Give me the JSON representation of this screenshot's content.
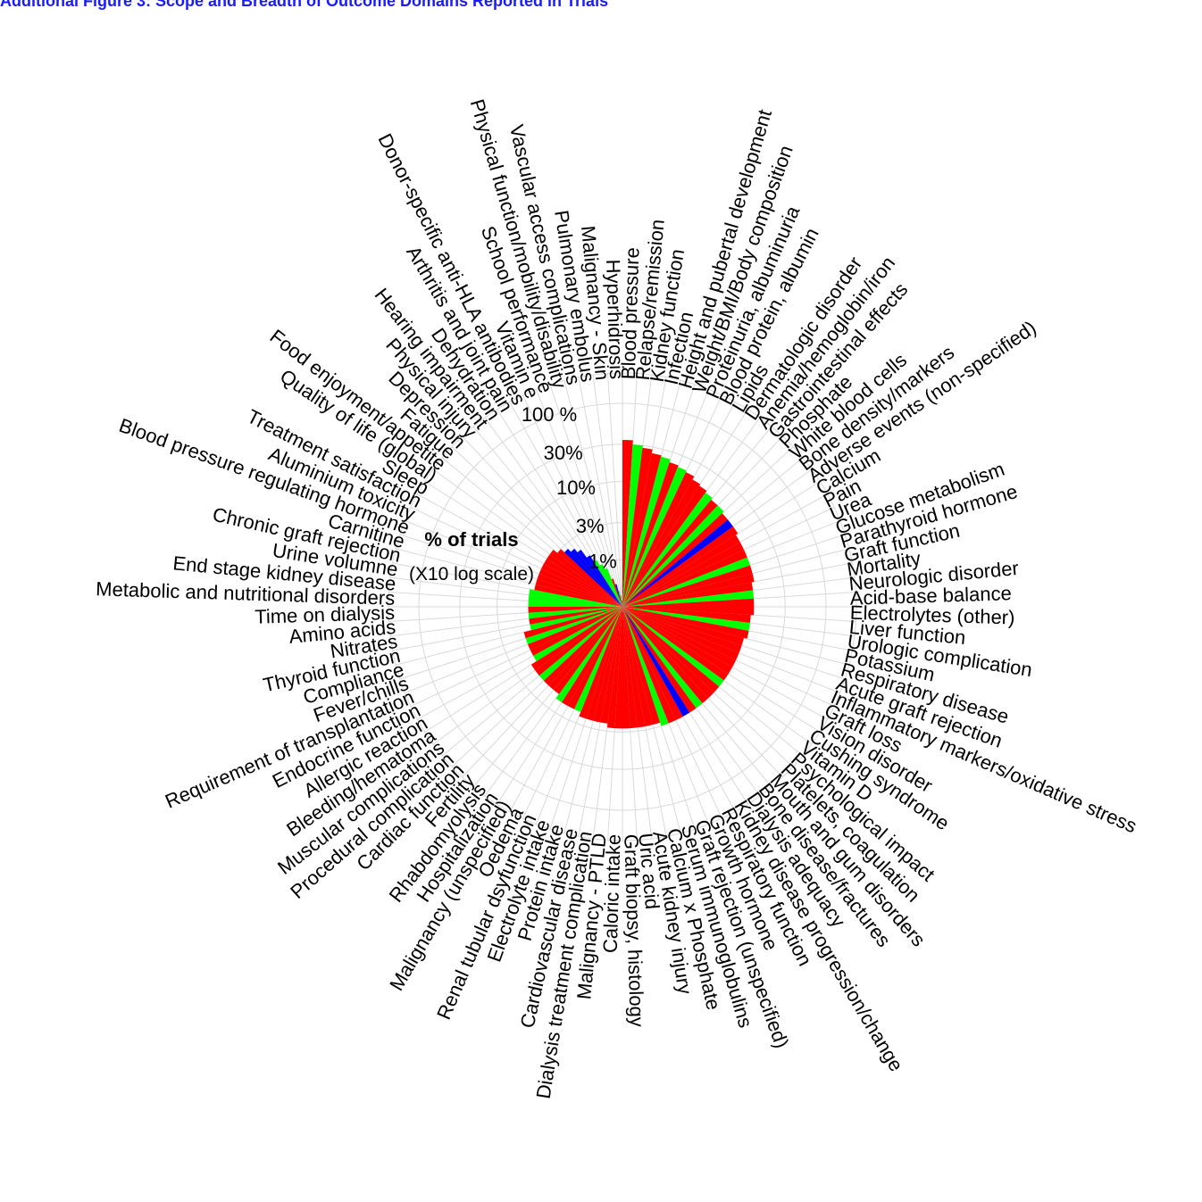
{
  "figure": {
    "title": "Additional Figure 3: Scope and Breadth of Outcome Domains Reported in Trials"
  },
  "chart_data": {
    "type": "radial_bar",
    "ring_labels": [
      "1%",
      "3%",
      "10%",
      "30%",
      "100 %"
    ],
    "rings": [
      1,
      3,
      10,
      30,
      100
    ],
    "ylabel": "% of trials",
    "ylabel_sub": "(X10 log scale)",
    "colors": {
      "red": "#ff0000",
      "green": "#00ff00",
      "blue": "#0000ff",
      "grid": "#d9d9d9"
    },
    "categories": [
      "Blood pressure",
      "Relapse/remission",
      "Kidney function",
      "Infection",
      "Height and pubertal development",
      "Weight/BMI/Body composition",
      "Proteinuria, albuminuria",
      "Blood protein, albumin",
      "Lipids",
      "Dermatologic disorder",
      "Anemia/hemoglobin/iron",
      "Gastrointestinal effects",
      "Phosphate",
      "White blood cells",
      "Bone density/markers",
      "Adverse events (non-specified)",
      "Calcium",
      "Pain",
      "Urea",
      "Glucose metabolism",
      "Parathyroid hormone",
      "Graft function",
      "Mortality",
      "Neurologic disorder",
      "Acid-base balance",
      "Electrolytes (other)",
      "Liver function",
      "Urologic complication",
      "Potassium",
      "Respiratory disease",
      "Acute graft rejection",
      "Inflammatory markers/oxidative stress",
      "Graft loss",
      "Vision disorder",
      "Cushing syndrome",
      "Vitamin D",
      "Psychological impact",
      "Platelets, coagulation",
      "Mouth and gum disorders",
      "Bone disease/fractures",
      "Dialysis adequacy",
      "Kidney disease progression/change",
      "Respiratory function",
      "Growth hormone",
      "Graft rejection (unspecified)",
      "Serum immunoglobulins",
      "Calcium x Phosphate",
      "Acute kidney injury",
      "Uric acid",
      "Graft biopsy, histology",
      "Caloric intake",
      "Malignancy - PTLD",
      "Dialysis treatment complication",
      "Cardiovascular disease",
      "Protein intake",
      "Electrolyte intake",
      "Renal tubular dsyfunction",
      "Oedema",
      "Malignancy (unspecified)",
      "Hospitalization",
      "Rhabdomyolysis",
      "Fertility",
      "Cardiac function",
      "Procedural complication",
      "Muscular complications",
      "Bleeding/hematoma",
      "Allergic reaction",
      "Endocrine function",
      "Requirement of transplantation",
      "Fever/chills",
      "Compliance",
      "Thyroid function",
      "Nitrates",
      "Amino acids",
      "Time on dialysis",
      "Metabolic and nutritional disorders",
      "End stage kidney disease",
      "Urine volumne",
      "Chronic graft rejection",
      "Carnitine",
      "Blood pressure regulating hormone",
      "Aluminium toxicity",
      "Treatment satisfaction",
      "Sleep",
      "Quality of life (global)",
      "Food enjoyment/appetite",
      "Fatigue",
      "Depression",
      "Physical injury",
      "Hearing impairment",
      "Dehydration",
      "Arthritis and joint pain",
      "Donor-specific anti-HLA antibodies",
      "Vitamin e",
      "School performance",
      "Physical function/mobility/disability",
      "Vascular access complications",
      "Pulmonary embolus",
      "Malignancy - Skin",
      "Hyperhidrosis"
    ],
    "values": [
      34,
      30,
      28,
      25,
      24,
      22,
      21,
      20,
      18,
      17,
      16,
      15,
      15,
      14,
      14,
      14,
      13,
      13,
      13,
      13,
      13,
      13,
      12,
      12,
      12,
      12,
      11,
      11,
      11,
      10,
      10,
      10,
      10,
      10,
      10,
      10,
      10,
      10,
      10,
      10,
      10,
      10,
      10,
      10,
      10,
      9,
      9,
      9,
      9,
      9,
      9,
      9,
      8,
      8,
      8,
      8,
      7,
      7,
      7,
      7,
      6,
      6,
      6,
      6,
      6,
      6,
      5,
      5,
      5,
      5,
      5,
      4,
      4,
      4,
      4,
      4,
      4,
      4,
      3.5,
      3.5,
      3.5,
      3.5,
      3.5,
      3.5,
      3.5,
      3.5,
      3,
      2.6,
      2.3,
      2,
      1.5,
      1.2,
      1,
      0.85,
      0.6,
      0.5,
      0.4,
      0.35,
      0.3,
      0.3
    ],
    "bar_colors": [
      "red",
      "green",
      "red",
      "red",
      "green",
      "red",
      "green",
      "red",
      "red",
      "red",
      "green",
      "red",
      "green",
      "red",
      "blue",
      "red",
      "red",
      "red",
      "red",
      "green",
      "red",
      "red",
      "red",
      "green",
      "red",
      "red",
      "red",
      "green",
      "red",
      "red",
      "red",
      "red",
      "red",
      "red",
      "red",
      "green",
      "red",
      "red",
      "red",
      "green",
      "red",
      "blue",
      "red",
      "red",
      "green",
      "red",
      "red",
      "red",
      "red",
      "red",
      "red",
      "red",
      "red",
      "red",
      "red",
      "red",
      "green",
      "red",
      "red",
      "green",
      "red",
      "red",
      "red",
      "green",
      "red",
      "red",
      "green",
      "red",
      "red",
      "green",
      "red",
      "green",
      "red",
      "green",
      "red",
      "green",
      "green",
      "green",
      "red",
      "red",
      "red",
      "red",
      "red",
      "red",
      "red",
      "red",
      "red",
      "blue",
      "blue",
      "blue",
      "blue",
      "green",
      "green",
      "green",
      "red",
      "blue",
      "green",
      "red",
      "red",
      "red"
    ]
  }
}
